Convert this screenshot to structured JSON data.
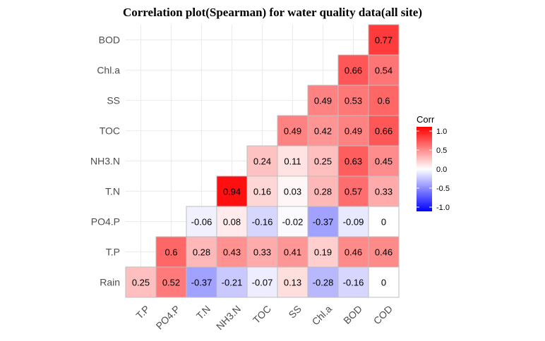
{
  "chart_data": {
    "type": "heatmap",
    "title": "Correlation plot(Spearman) for water quality data(all site)",
    "x_categories": [
      "T.P",
      "PO4.P",
      "T.N",
      "NH3.N",
      "TOC",
      "SS",
      "Chl.a",
      "BOD",
      "COD"
    ],
    "y_categories": [
      "Rain",
      "T.P",
      "PO4.P",
      "T.N",
      "NH3.N",
      "TOC",
      "SS",
      "Chl.a",
      "BOD"
    ],
    "cells": [
      {
        "x": "T.P",
        "y": "Rain",
        "value": 0.25,
        "label": "0.25"
      },
      {
        "x": "PO4.P",
        "y": "Rain",
        "value": 0.52,
        "label": "0.52"
      },
      {
        "x": "T.N",
        "y": "Rain",
        "value": -0.37,
        "label": "-0.37"
      },
      {
        "x": "NH3.N",
        "y": "Rain",
        "value": -0.21,
        "label": "-0.21"
      },
      {
        "x": "TOC",
        "y": "Rain",
        "value": -0.07,
        "label": "-0.07"
      },
      {
        "x": "SS",
        "y": "Rain",
        "value": 0.13,
        "label": "0.13"
      },
      {
        "x": "Chl.a",
        "y": "Rain",
        "value": -0.28,
        "label": "-0.28"
      },
      {
        "x": "BOD",
        "y": "Rain",
        "value": -0.16,
        "label": "-0.16"
      },
      {
        "x": "COD",
        "y": "Rain",
        "value": 0,
        "label": "0"
      },
      {
        "x": "PO4.P",
        "y": "T.P",
        "value": 0.6,
        "label": "0.6"
      },
      {
        "x": "T.N",
        "y": "T.P",
        "value": 0.28,
        "label": "0.28"
      },
      {
        "x": "NH3.N",
        "y": "T.P",
        "value": 0.43,
        "label": "0.43"
      },
      {
        "x": "TOC",
        "y": "T.P",
        "value": 0.33,
        "label": "0.33"
      },
      {
        "x": "SS",
        "y": "T.P",
        "value": 0.41,
        "label": "0.41"
      },
      {
        "x": "Chl.a",
        "y": "T.P",
        "value": 0.19,
        "label": "0.19"
      },
      {
        "x": "BOD",
        "y": "T.P",
        "value": 0.46,
        "label": "0.46"
      },
      {
        "x": "COD",
        "y": "T.P",
        "value": 0.46,
        "label": "0.46"
      },
      {
        "x": "T.N",
        "y": "PO4.P",
        "value": -0.06,
        "label": "-0.06"
      },
      {
        "x": "NH3.N",
        "y": "PO4.P",
        "value": 0.08,
        "label": "0.08"
      },
      {
        "x": "TOC",
        "y": "PO4.P",
        "value": -0.16,
        "label": "-0.16"
      },
      {
        "x": "SS",
        "y": "PO4.P",
        "value": -0.02,
        "label": "-0.02"
      },
      {
        "x": "Chl.a",
        "y": "PO4.P",
        "value": -0.37,
        "label": "-0.37"
      },
      {
        "x": "BOD",
        "y": "PO4.P",
        "value": -0.09,
        "label": "-0.09"
      },
      {
        "x": "COD",
        "y": "PO4.P",
        "value": 0,
        "label": "0"
      },
      {
        "x": "NH3.N",
        "y": "T.N",
        "value": 0.94,
        "label": "0.94"
      },
      {
        "x": "TOC",
        "y": "T.N",
        "value": 0.16,
        "label": "0.16"
      },
      {
        "x": "SS",
        "y": "T.N",
        "value": 0.03,
        "label": "0.03"
      },
      {
        "x": "Chl.a",
        "y": "T.N",
        "value": 0.28,
        "label": "0.28"
      },
      {
        "x": "BOD",
        "y": "T.N",
        "value": 0.57,
        "label": "0.57"
      },
      {
        "x": "COD",
        "y": "T.N",
        "value": 0.33,
        "label": "0.33"
      },
      {
        "x": "TOC",
        "y": "NH3.N",
        "value": 0.24,
        "label": "0.24"
      },
      {
        "x": "SS",
        "y": "NH3.N",
        "value": 0.11,
        "label": "0.11"
      },
      {
        "x": "Chl.a",
        "y": "NH3.N",
        "value": 0.25,
        "label": "0.25"
      },
      {
        "x": "BOD",
        "y": "NH3.N",
        "value": 0.63,
        "label": "0.63"
      },
      {
        "x": "COD",
        "y": "NH3.N",
        "value": 0.45,
        "label": "0.45"
      },
      {
        "x": "SS",
        "y": "TOC",
        "value": 0.49,
        "label": "0.49"
      },
      {
        "x": "Chl.a",
        "y": "TOC",
        "value": 0.42,
        "label": "0.42"
      },
      {
        "x": "BOD",
        "y": "TOC",
        "value": 0.49,
        "label": "0.49"
      },
      {
        "x": "COD",
        "y": "TOC",
        "value": 0.66,
        "label": "0.66"
      },
      {
        "x": "Chl.a",
        "y": "SS",
        "value": 0.49,
        "label": "0.49"
      },
      {
        "x": "BOD",
        "y": "SS",
        "value": 0.53,
        "label": "0.53"
      },
      {
        "x": "COD",
        "y": "SS",
        "value": 0.6,
        "label": "0.6"
      },
      {
        "x": "BOD",
        "y": "Chl.a",
        "value": 0.66,
        "label": "0.66"
      },
      {
        "x": "COD",
        "y": "Chl.a",
        "value": 0.54,
        "label": "0.54"
      },
      {
        "x": "COD",
        "y": "BOD",
        "value": 0.77,
        "label": "0.77"
      }
    ],
    "color_scale": {
      "low": "#0000ff",
      "mid": "#ffffff",
      "high": "#ff0000",
      "limits": [
        -1,
        1
      ]
    },
    "legend": {
      "title": "Corr",
      "ticks": [
        {
          "value": 1.0,
          "label": "1.0"
        },
        {
          "value": 0.5,
          "label": "0.5"
        },
        {
          "value": 0.0,
          "label": "0.0"
        },
        {
          "value": -0.5,
          "label": "-0.5"
        },
        {
          "value": -1.0,
          "label": "-1.0"
        }
      ],
      "position": "right"
    },
    "grid": true,
    "cell_border_color": "#bebebe"
  }
}
